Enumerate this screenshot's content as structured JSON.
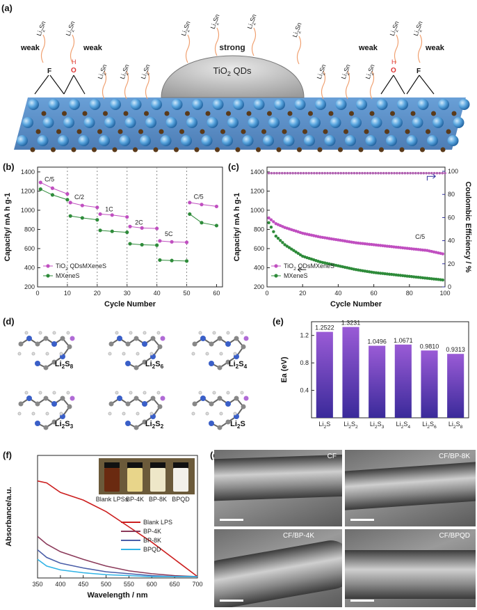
{
  "panels": {
    "a": "(a)",
    "b": "(b)",
    "c": "(c)",
    "d": "(d)",
    "e": "(e)",
    "f": "(f)",
    "g": "(g)"
  },
  "a": {
    "weak": "weak",
    "strong": "strong",
    "qd": "TiO2 QDs",
    "f_atom": "F",
    "o_atom": "O",
    "h_atom": "H",
    "li": "Li2Sn"
  },
  "b": {
    "xlabel": "Cycle Number",
    "ylabel": "Capacity/ mA h g-1",
    "rates": [
      "C/5",
      "C/2",
      "1C",
      "2C",
      "5C",
      "C/5"
    ],
    "legend": [
      "TiO2 QDs@MXene/S",
      "MXene/S"
    ],
    "yticks": [
      "1400",
      "1200",
      "1000",
      "800",
      "600",
      "400",
      "200"
    ],
    "xticks": [
      "0",
      "10",
      "20",
      "30",
      "40",
      "50",
      "60"
    ]
  },
  "c": {
    "xlabel": "Cycle Number",
    "ylabel": "Capacity/ mA h g-1",
    "y2label": "Coulombic Efficiency / %",
    "note": "C/5",
    "legend": [
      "TiO2 QDs@MXene/S",
      "MXene/S"
    ],
    "yticks": [
      "1400",
      "1200",
      "1000",
      "800",
      "600",
      "400",
      "200"
    ],
    "y2ticks": [
      "100",
      "80",
      "60",
      "40",
      "20",
      "0"
    ],
    "xticks": [
      "0",
      "20",
      "40",
      "60",
      "80",
      "100"
    ]
  },
  "d": {
    "labels": [
      "Li2S8",
      "Li2S6",
      "Li2S4",
      "Li2S3",
      "Li2S2",
      "Li2S"
    ]
  },
  "e": {
    "ylabel": "Ea (eV)",
    "yticks": [
      "1.2",
      "0.8",
      "0.4"
    ]
  },
  "f": {
    "xlabel": "Wavelength / nm",
    "ylabel": "Absorbance/a.u.",
    "xticks": [
      "350",
      "400",
      "450",
      "500",
      "550",
      "600",
      "650",
      "700"
    ],
    "vials": [
      "Blank LPSs",
      "BP-4K",
      "BP-8K",
      "BPQD"
    ],
    "legend": [
      "Blank LPS",
      "BP-4K",
      "BP-8K",
      "BPQD"
    ],
    "colors": [
      "#cc1f1f",
      "#8b3a5a",
      "#4a5ea8",
      "#2fb3e6"
    ]
  },
  "g": {
    "labels": [
      "CF",
      "CF/BP-8K",
      "CF/BP-4K",
      "CF/BPQD"
    ]
  },
  "chart_data": [
    {
      "type": "line",
      "id": "b",
      "xlabel": "Cycle Number",
      "ylabel": "Capacity/ mA h g-1",
      "xlim": [
        0,
        62
      ],
      "ylim": [
        200,
        1450
      ],
      "series": [
        {
          "name": "TiO2 QDs@MXene/S",
          "x": [
            1,
            5,
            10,
            11,
            15,
            20,
            21,
            25,
            30,
            31,
            35,
            40,
            41,
            45,
            50,
            51,
            55,
            60
          ],
          "values": [
            1290,
            1230,
            1170,
            1080,
            1050,
            1030,
            960,
            950,
            930,
            830,
            815,
            810,
            680,
            670,
            665,
            1080,
            1060,
            1040
          ]
        },
        {
          "name": "MXene/S",
          "x": [
            1,
            5,
            10,
            11,
            15,
            20,
            21,
            25,
            30,
            31,
            35,
            40,
            41,
            45,
            50,
            51,
            55,
            60
          ],
          "values": [
            1220,
            1160,
            1110,
            940,
            920,
            900,
            790,
            780,
            770,
            650,
            640,
            635,
            480,
            475,
            470,
            960,
            870,
            840
          ]
        }
      ]
    },
    {
      "type": "line",
      "id": "c",
      "xlabel": "Cycle Number",
      "ylabel": "Capacity/ mA h g-1",
      "xlim": [
        0,
        100
      ],
      "ylim": [
        200,
        1450
      ],
      "series": [
        {
          "name": "TiO2 QDs@MXene/S",
          "x": [
            1,
            5,
            10,
            20,
            30,
            40,
            50,
            60,
            70,
            80,
            90,
            100
          ],
          "values": [
            920,
            860,
            820,
            760,
            720,
            690,
            660,
            640,
            620,
            600,
            580,
            540
          ]
        },
        {
          "name": "MXene/S",
          "x": [
            1,
            5,
            10,
            20,
            30,
            40,
            50,
            60,
            70,
            80,
            90,
            100
          ],
          "values": [
            870,
            730,
            640,
            520,
            460,
            420,
            380,
            350,
            330,
            310,
            290,
            270
          ]
        }
      ]
    },
    {
      "type": "bar",
      "id": "e",
      "ylabel": "Ea (eV)",
      "ylim": [
        0,
        1.4
      ],
      "categories": [
        "Li2S",
        "Li2S2",
        "Li2S3",
        "Li2S4",
        "Li2S6",
        "Li2S8"
      ],
      "values": [
        1.2522,
        1.3231,
        1.0496,
        1.0671,
        0.981,
        0.9313
      ],
      "value_labels": [
        "1.2522",
        "1.3231",
        "1.0496",
        "1.0671",
        "0.9810",
        "0.9313"
      ]
    },
    {
      "type": "line",
      "id": "f",
      "xlabel": "Wavelength / nm",
      "ylabel": "Absorbance/a.u.",
      "xlim": [
        350,
        700
      ],
      "series": [
        {
          "name": "Blank LPS",
          "x": [
            350,
            370,
            400,
            450,
            500,
            550,
            600,
            650,
            700
          ],
          "values": [
            1.0,
            0.98,
            0.88,
            0.8,
            0.68,
            0.52,
            0.36,
            0.18,
            0.0
          ]
        },
        {
          "name": "BP-4K",
          "x": [
            350,
            370,
            400,
            450,
            500,
            550,
            600,
            650,
            700
          ],
          "values": [
            0.42,
            0.34,
            0.26,
            0.18,
            0.11,
            0.06,
            0.03,
            0.01,
            0.0
          ]
        },
        {
          "name": "BP-8K",
          "x": [
            350,
            370,
            400,
            450,
            500,
            550,
            600,
            650,
            700
          ],
          "values": [
            0.28,
            0.2,
            0.14,
            0.09,
            0.05,
            0.03,
            0.01,
            0.0,
            0.0
          ]
        },
        {
          "name": "BPQD",
          "x": [
            350,
            370,
            400,
            450,
            500,
            550,
            600,
            650,
            700
          ],
          "values": [
            0.18,
            0.11,
            0.07,
            0.04,
            0.02,
            0.01,
            0.0,
            0.0,
            0.0
          ]
        }
      ]
    }
  ]
}
